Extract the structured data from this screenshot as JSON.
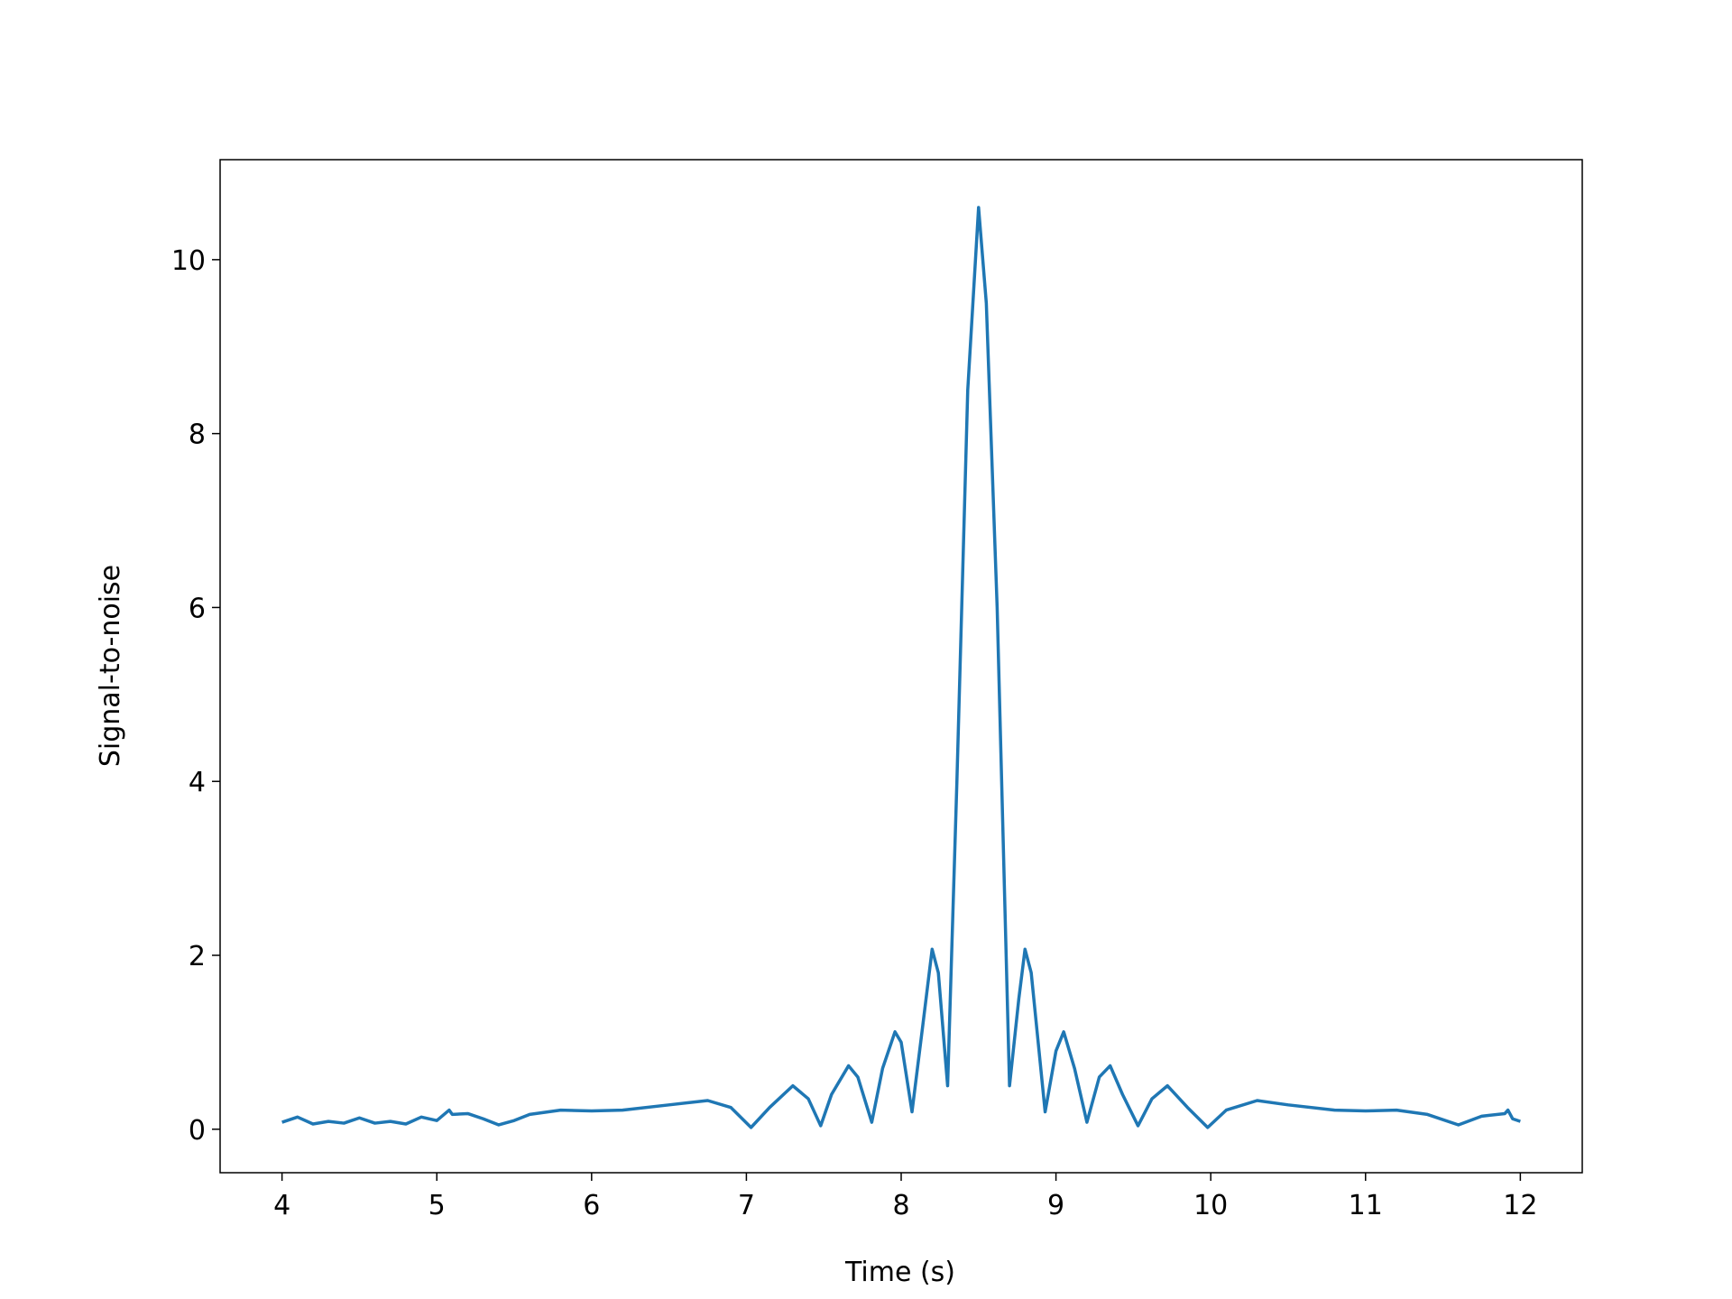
{
  "chart_data": {
    "type": "line",
    "xlabel": "Time (s)",
    "ylabel": "Signal-to-noise",
    "x": [
      4.0,
      4.1,
      4.2,
      4.3,
      4.4,
      4.5,
      4.6,
      4.7,
      4.8,
      4.9,
      5.0,
      5.08,
      5.1,
      5.2,
      5.3,
      5.4,
      5.5,
      5.6,
      5.8,
      6.0,
      6.2,
      6.5,
      6.75,
      6.9,
      7.03,
      7.15,
      7.3,
      7.4,
      7.48,
      7.55,
      7.66,
      7.72,
      7.81,
      7.88,
      7.96,
      8.0,
      8.07,
      8.14,
      8.2,
      8.24,
      8.3,
      8.36,
      8.43,
      8.5,
      8.55,
      8.62,
      8.7,
      8.76,
      8.8,
      8.84,
      8.93,
      9.0,
      9.05,
      9.12,
      9.2,
      9.28,
      9.35,
      9.43,
      9.53,
      9.62,
      9.72,
      9.85,
      9.98,
      10.1,
      10.3,
      10.5,
      10.8,
      11.0,
      11.2,
      11.4,
      11.6,
      11.75,
      11.9,
      11.92,
      11.95,
      12.0
    ],
    "series": [
      {
        "name": "Signal-to-noise",
        "color": "#1f77b4",
        "values": [
          0.08,
          0.14,
          0.06,
          0.09,
          0.07,
          0.13,
          0.07,
          0.09,
          0.06,
          0.14,
          0.1,
          0.22,
          0.17,
          0.18,
          0.12,
          0.05,
          0.1,
          0.17,
          0.22,
          0.21,
          0.22,
          0.28,
          0.33,
          0.25,
          0.02,
          0.25,
          0.5,
          0.35,
          0.04,
          0.4,
          0.73,
          0.6,
          0.08,
          0.7,
          1.12,
          1.0,
          0.2,
          1.2,
          2.07,
          1.8,
          0.5,
          4,
          8.5,
          10.6,
          9.5,
          6,
          0.5,
          1.5,
          2.07,
          1.8,
          0.2,
          0.9,
          1.12,
          0.7,
          0.08,
          0.6,
          0.73,
          0.4,
          0.04,
          0.35,
          0.5,
          0.25,
          0.02,
          0.22,
          0.33,
          0.28,
          0.22,
          0.21,
          0.22,
          0.17,
          0.05,
          0.15,
          0.18,
          0.22,
          0.12,
          0.09
        ]
      }
    ],
    "xlim": [
      3.6,
      12.4
    ],
    "xticks": [
      4,
      5,
      6,
      7,
      8,
      9,
      10,
      11,
      12
    ],
    "ylim": [
      -0.5,
      11.15
    ],
    "yticks": [
      0,
      2,
      4,
      6,
      8,
      10
    ],
    "grid": false
  }
}
